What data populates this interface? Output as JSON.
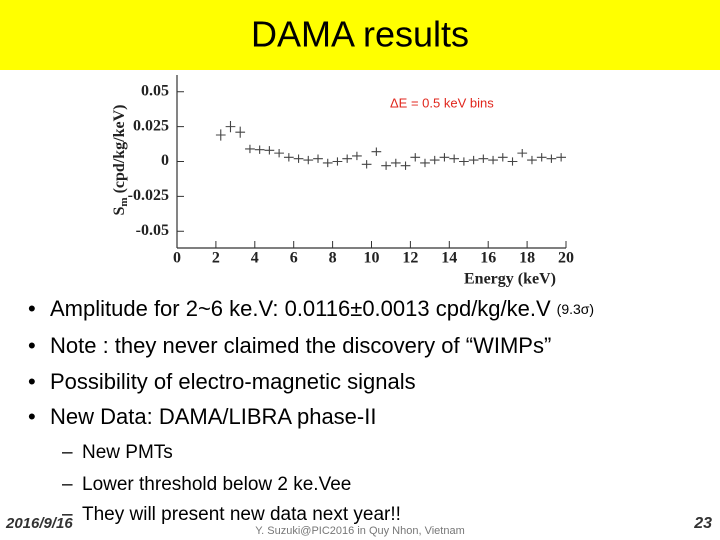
{
  "title": "DAMA results",
  "bullets": [
    "Amplitude for 2~6 ke.V: 0.0116±0.0013 cpd/kg/ke.V",
    "Note : they never claimed the discovery of “WIMPs”",
    "Possibility of electro-magnetic signals",
    "New Data: DAMA/LIBRA phase-II"
  ],
  "bullet_note": "(9.3σ)",
  "sub_bullets": [
    "New PMTs",
    "Lower threshold below 2 ke.Vee",
    "They will present new data next year!!"
  ],
  "footer": {
    "date": "2016/9/16",
    "author": "Y. Suzuki@PIC2016 in Quy Nhon, Vietnam",
    "page": "23"
  },
  "chart_data": {
    "type": "scatter",
    "annotation": "ΔE = 0.5 keV bins",
    "xlabel": "Energy (keV)",
    "ylabel": [
      "S",
      "m",
      " (cpd/kg/keV)"
    ],
    "x": [
      2.25,
      2.75,
      3.25,
      3.75,
      4.25,
      4.75,
      5.25,
      5.75,
      6.25,
      6.75,
      7.25,
      7.75,
      8.25,
      8.75,
      9.25,
      9.75,
      10.25,
      10.75,
      11.25,
      11.75,
      12.25,
      12.75,
      13.25,
      13.75,
      14.25,
      14.75,
      15.25,
      15.75,
      16.25,
      16.75,
      17.25,
      17.75,
      18.25,
      18.75,
      19.25,
      19.75
    ],
    "values": [
      0.019,
      0.025,
      0.021,
      0.009,
      0.0085,
      0.008,
      0.006,
      0.003,
      0.002,
      0.001,
      0.002,
      -0.001,
      0.0,
      0.002,
      0.004,
      -0.002,
      0.007,
      -0.003,
      -0.001,
      -0.003,
      0.003,
      -0.001,
      0.001,
      0.003,
      0.002,
      0.0,
      0.001,
      0.002,
      0.001,
      0.003,
      0.0,
      0.006,
      0.001,
      0.003,
      0.002,
      0.003
    ],
    "errors": [
      0.004,
      0.004,
      0.004,
      0.003,
      0.003,
      0.003,
      0.003,
      0.003,
      0.003,
      0.003,
      0.003,
      0.003,
      0.003,
      0.003,
      0.003,
      0.003,
      0.003,
      0.003,
      0.003,
      0.003,
      0.003,
      0.003,
      0.003,
      0.003,
      0.003,
      0.003,
      0.003,
      0.003,
      0.003,
      0.003,
      0.003,
      0.003,
      0.003,
      0.003,
      0.003,
      0.003
    ],
    "xerr": 0.25,
    "color": "#444444",
    "annotation_color": "#e0261c",
    "xlim": [
      0,
      20
    ],
    "ylim": [
      -0.062,
      0.062
    ],
    "xticks": [
      0,
      2,
      4,
      6,
      8,
      10,
      12,
      14,
      16,
      18,
      20
    ],
    "yticks": [
      -0.05,
      -0.025,
      0,
      0.025,
      0.05
    ]
  }
}
